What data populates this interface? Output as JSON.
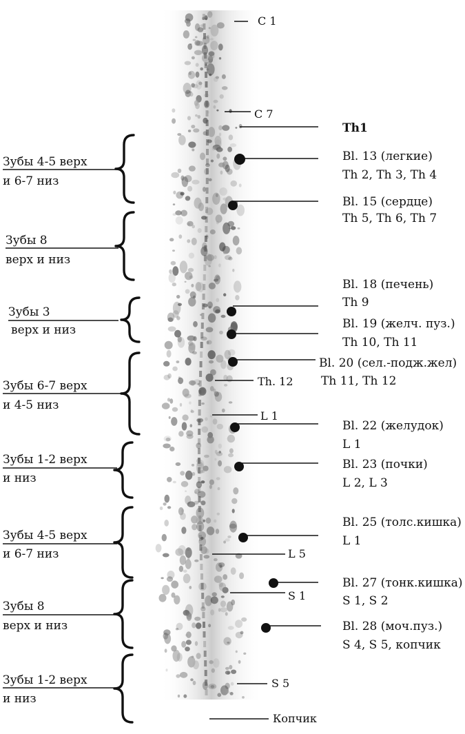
{
  "colors": {
    "ink": "#111111",
    "spine": "#9a9a9a",
    "background": "#ffffff"
  },
  "vertebra_labels": [
    {
      "id": "c1",
      "text": "C 1"
    },
    {
      "id": "c7",
      "text": "C 7"
    },
    {
      "id": "th12",
      "text": "Th. 12"
    },
    {
      "id": "l1",
      "text": "L 1"
    },
    {
      "id": "l5",
      "text": "L 5"
    },
    {
      "id": "s1",
      "text": "S 1"
    },
    {
      "id": "s5",
      "text": "S 5"
    },
    {
      "id": "coccyx",
      "text": "Копчик"
    }
  ],
  "th1_label": "Th1",
  "points": [
    {
      "id": "bl13",
      "name": "Bl. 13 (легкие)",
      "segments": "Th 2, Th 3, Th 4"
    },
    {
      "id": "bl15",
      "name": "Bl. 15 (сердце)",
      "segments": "Th 5, Th 6, Th 7"
    },
    {
      "id": "bl18",
      "name": "Bl. 18 (печень)",
      "segments": "Th 9"
    },
    {
      "id": "bl19",
      "name": "Bl. 19 (желч. пуз.)",
      "segments": "Th 10, Th 11"
    },
    {
      "id": "bl20",
      "name": "Bl. 20 (сел.-подж.жел)",
      "segments": "Th 11, Th 12"
    },
    {
      "id": "bl22",
      "name": "Bl. 22 (желудок)",
      "segments": "L 1"
    },
    {
      "id": "bl23",
      "name": "Bl. 23 (почки)",
      "segments": "L 2, L 3"
    },
    {
      "id": "bl25",
      "name": "Bl. 25 (толс.кишка)",
      "segments": "L 1"
    },
    {
      "id": "bl27",
      "name": "Bl. 27 (тонк.кишка)",
      "segments": "S 1, S 2"
    },
    {
      "id": "bl28",
      "name": "Bl. 28 (моч.пуз.)",
      "segments": "S 4, S 5, копчик"
    }
  ],
  "teeth_groups": [
    {
      "id": "g1",
      "line1": "Зубы 4-5 верх",
      "line2": "и 6-7 низ"
    },
    {
      "id": "g2",
      "line1": "Зубы 8",
      "line2": "верх и низ"
    },
    {
      "id": "g3",
      "line1": "Зубы 3",
      "line2": "верх и низ"
    },
    {
      "id": "g4",
      "line1": "Зубы 6-7 верх",
      "line2": "и 4-5 низ"
    },
    {
      "id": "g5",
      "line1": "Зубы 1-2 верх",
      "line2": "и низ"
    },
    {
      "id": "g6",
      "line1": "Зубы 4-5 верх",
      "line2": "и 6-7 низ"
    },
    {
      "id": "g7",
      "line1": "Зубы 8",
      "line2": "верх и низ"
    },
    {
      "id": "g8",
      "line1": "Зубы 1-2 верх",
      "line2": "и низ"
    }
  ]
}
